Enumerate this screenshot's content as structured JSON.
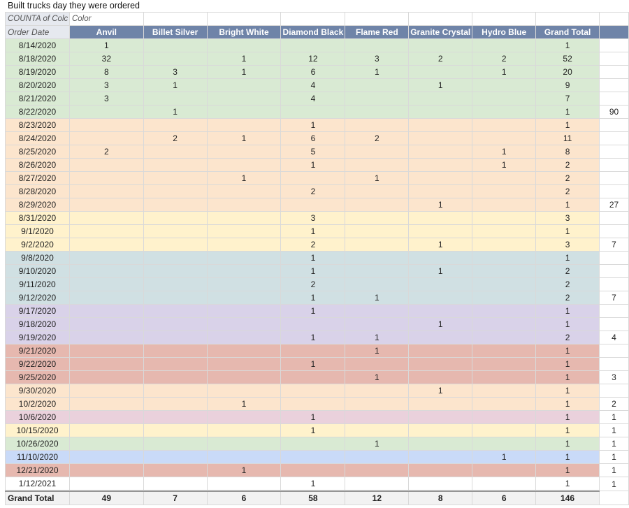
{
  "title": "Built trucks day they were ordered",
  "pivot": {
    "meta_label": "COUNTA of Colc",
    "color_label": "Color",
    "row_label": "Order Date",
    "columns": [
      "Anvil",
      "Billet Silver",
      "Bright White",
      "Diamond Black",
      "Flame Red",
      "Granite Crystal",
      "Hydro Blue",
      "Grand Total"
    ],
    "rows": [
      {
        "date": "8/14/2020",
        "vals": [
          "1",
          "",
          "",
          "",
          "",
          "",
          "",
          "1"
        ],
        "side": "",
        "bg": "#d9ead3"
      },
      {
        "date": "8/18/2020",
        "vals": [
          "32",
          "",
          "1",
          "12",
          "3",
          "2",
          "2",
          "52"
        ],
        "side": "",
        "bg": "#d9ead3"
      },
      {
        "date": "8/19/2020",
        "vals": [
          "8",
          "3",
          "1",
          "6",
          "1",
          "",
          "1",
          "20"
        ],
        "side": "",
        "bg": "#d9ead3"
      },
      {
        "date": "8/20/2020",
        "vals": [
          "3",
          "1",
          "",
          "4",
          "",
          "1",
          "",
          "9"
        ],
        "side": "",
        "bg": "#d9ead3"
      },
      {
        "date": "8/21/2020",
        "vals": [
          "3",
          "",
          "",
          "4",
          "",
          "",
          "",
          "7"
        ],
        "side": "",
        "bg": "#d9ead3"
      },
      {
        "date": "8/22/2020",
        "vals": [
          "",
          "1",
          "",
          "",
          "",
          "",
          "",
          "1"
        ],
        "side": "90",
        "bg": "#d9ead3"
      },
      {
        "date": "8/23/2020",
        "vals": [
          "",
          "",
          "",
          "1",
          "",
          "",
          "",
          "1"
        ],
        "side": "",
        "bg": "#fce5cd"
      },
      {
        "date": "8/24/2020",
        "vals": [
          "",
          "2",
          "1",
          "6",
          "2",
          "",
          "",
          "11"
        ],
        "side": "",
        "bg": "#fce5cd"
      },
      {
        "date": "8/25/2020",
        "vals": [
          "2",
          "",
          "",
          "5",
          "",
          "",
          "1",
          "8"
        ],
        "side": "",
        "bg": "#fce5cd"
      },
      {
        "date": "8/26/2020",
        "vals": [
          "",
          "",
          "",
          "1",
          "",
          "",
          "1",
          "2"
        ],
        "side": "",
        "bg": "#fce5cd"
      },
      {
        "date": "8/27/2020",
        "vals": [
          "",
          "",
          "1",
          "",
          "1",
          "",
          "",
          "2"
        ],
        "side": "",
        "bg": "#fce5cd"
      },
      {
        "date": "8/28/2020",
        "vals": [
          "",
          "",
          "",
          "2",
          "",
          "",
          "",
          "2"
        ],
        "side": "",
        "bg": "#fce5cd"
      },
      {
        "date": "8/29/2020",
        "vals": [
          "",
          "",
          "",
          "",
          "",
          "1",
          "",
          "1"
        ],
        "side": "27",
        "bg": "#fce5cd"
      },
      {
        "date": "8/31/2020",
        "vals": [
          "",
          "",
          "",
          "3",
          "",
          "",
          "",
          "3"
        ],
        "side": "",
        "bg": "#fff2cc"
      },
      {
        "date": "9/1/2020",
        "vals": [
          "",
          "",
          "",
          "1",
          "",
          "",
          "",
          "1"
        ],
        "side": "",
        "bg": "#fff2cc"
      },
      {
        "date": "9/2/2020",
        "vals": [
          "",
          "",
          "",
          "2",
          "",
          "1",
          "",
          "3"
        ],
        "side": "7",
        "bg": "#fff2cc"
      },
      {
        "date": "9/8/2020",
        "vals": [
          "",
          "",
          "",
          "1",
          "",
          "",
          "",
          "1"
        ],
        "side": "",
        "bg": "#d0e0e3"
      },
      {
        "date": "9/10/2020",
        "vals": [
          "",
          "",
          "",
          "1",
          "",
          "1",
          "",
          "2"
        ],
        "side": "",
        "bg": "#d0e0e3"
      },
      {
        "date": "9/11/2020",
        "vals": [
          "",
          "",
          "",
          "2",
          "",
          "",
          "",
          "2"
        ],
        "side": "",
        "bg": "#d0e0e3"
      },
      {
        "date": "9/12/2020",
        "vals": [
          "",
          "",
          "",
          "1",
          "1",
          "",
          "",
          "2"
        ],
        "side": "7",
        "bg": "#d0e0e3"
      },
      {
        "date": "9/17/2020",
        "vals": [
          "",
          "",
          "",
          "1",
          "",
          "",
          "",
          "1"
        ],
        "side": "",
        "bg": "#d9d2e9"
      },
      {
        "date": "9/18/2020",
        "vals": [
          "",
          "",
          "",
          "",
          "",
          "1",
          "",
          "1"
        ],
        "side": "",
        "bg": "#d9d2e9"
      },
      {
        "date": "9/19/2020",
        "vals": [
          "",
          "",
          "",
          "1",
          "1",
          "",
          "",
          "2"
        ],
        "side": "4",
        "bg": "#d9d2e9"
      },
      {
        "date": "9/21/2020",
        "vals": [
          "",
          "",
          "",
          "",
          "1",
          "",
          "",
          "1"
        ],
        "side": "",
        "bg": "#e6b8af"
      },
      {
        "date": "9/22/2020",
        "vals": [
          "",
          "",
          "",
          "1",
          "",
          "",
          "",
          "1"
        ],
        "side": "",
        "bg": "#e6b8af"
      },
      {
        "date": "9/25/2020",
        "vals": [
          "",
          "",
          "",
          "",
          "1",
          "",
          "",
          "1"
        ],
        "side": "3",
        "bg": "#e6b8af"
      },
      {
        "date": "9/30/2020",
        "vals": [
          "",
          "",
          "",
          "",
          "",
          "1",
          "",
          "1"
        ],
        "side": "",
        "bg": "#fce5cd"
      },
      {
        "date": "10/2/2020",
        "vals": [
          "",
          "",
          "1",
          "",
          "",
          "",
          "",
          "1"
        ],
        "side": "2",
        "bg": "#fce5cd"
      },
      {
        "date": "10/6/2020",
        "vals": [
          "",
          "",
          "",
          "1",
          "",
          "",
          "",
          "1"
        ],
        "side": "1",
        "bg": "#ead1dc"
      },
      {
        "date": "10/15/2020",
        "vals": [
          "",
          "",
          "",
          "1",
          "",
          "",
          "",
          "1"
        ],
        "side": "1",
        "bg": "#fff2cc"
      },
      {
        "date": "10/26/2020",
        "vals": [
          "",
          "",
          "",
          "",
          "1",
          "",
          "",
          "1"
        ],
        "side": "1",
        "bg": "#d9ead3"
      },
      {
        "date": "11/10/2020",
        "vals": [
          "",
          "",
          "",
          "",
          "",
          "",
          "1",
          "1"
        ],
        "side": "1",
        "bg": "#c9daf8"
      },
      {
        "date": "12/21/2020",
        "vals": [
          "",
          "",
          "1",
          "",
          "",
          "",
          "",
          "1"
        ],
        "side": "1",
        "bg": "#e6b8af"
      },
      {
        "date": "1/12/2021",
        "vals": [
          "",
          "",
          "",
          "1",
          "",
          "",
          "",
          "1"
        ],
        "side": "1",
        "bg": "#ffffff"
      }
    ],
    "total_label": "Grand Total",
    "totals": [
      "49",
      "7",
      "6",
      "58",
      "12",
      "8",
      "6",
      "146"
    ]
  }
}
